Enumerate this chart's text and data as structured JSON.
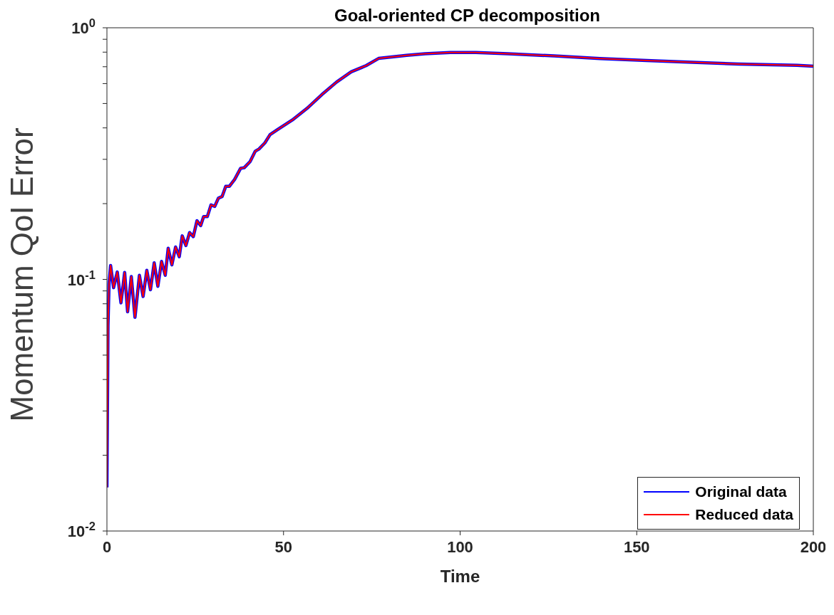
{
  "chart_data": {
    "type": "line",
    "title": "Goal-oriented CP decomposition",
    "xlabel": "Time",
    "ylabel": "Momentum QoI Error",
    "x": [
      0,
      0.3,
      0.6,
      1.04,
      1.88,
      2.93,
      3.97,
      5.02,
      5.85,
      6.9,
      7.94,
      9.2,
      10.24,
      11.29,
      12.33,
      13.38,
      14.42,
      15.47,
      16.51,
      17.35,
      18.39,
      19.44,
      20.48,
      21.32,
      22.36,
      23.41,
      24.45,
      25.5,
      26.54,
      27.38,
      28.42,
      29.47,
      30.51,
      31.56,
      32.6,
      33.65,
      34.69,
      36.15,
      37.83,
      38.87,
      40.54,
      42.01,
      43.05,
      44.72,
      46.19,
      48.28,
      52.46,
      56.64,
      60.82,
      65,
      69.17,
      73.35,
      76.91,
      84.85,
      90.07,
      97.18,
      104.5,
      113.5,
      126.6,
      139.6,
      152.8,
      165.7,
      178.9,
      195.4,
      200
    ],
    "series": [
      {
        "name": "Original data",
        "color": "#0000ff",
        "values": [
          0.0149,
          0.0655,
          0.0957,
          0.1135,
          0.0927,
          0.107,
          0.0807,
          0.1065,
          0.0743,
          0.1026,
          0.0707,
          0.1038,
          0.0855,
          0.1086,
          0.091,
          0.1164,
          0.0939,
          0.1179,
          0.1038,
          0.1329,
          0.1142,
          0.1345,
          0.1231,
          0.1489,
          0.1363,
          0.1535,
          0.1479,
          0.171,
          0.1636,
          0.1776,
          0.1776,
          0.1977,
          0.195,
          0.2104,
          0.2133,
          0.2344,
          0.2344,
          0.2496,
          0.2761,
          0.2778,
          0.294,
          0.3233,
          0.3297,
          0.3487,
          0.3762,
          0.3934,
          0.4296,
          0.478,
          0.542,
          0.608,
          0.6683,
          0.7068,
          0.7553,
          0.7765,
          0.7886,
          0.797,
          0.797,
          0.7886,
          0.773,
          0.755,
          0.7406,
          0.7295,
          0.7177,
          0.7092,
          0.703
        ]
      },
      {
        "name": "Reduced data",
        "color": "#ff0000",
        "values": [
          0.0149,
          0.0655,
          0.0957,
          0.1135,
          0.0927,
          0.107,
          0.0807,
          0.1065,
          0.0743,
          0.1026,
          0.0707,
          0.1038,
          0.0855,
          0.1086,
          0.091,
          0.1164,
          0.0939,
          0.1179,
          0.1038,
          0.1329,
          0.1142,
          0.1345,
          0.1231,
          0.1489,
          0.1363,
          0.1535,
          0.1479,
          0.171,
          0.1636,
          0.1776,
          0.1776,
          0.1977,
          0.195,
          0.2104,
          0.2133,
          0.2344,
          0.2344,
          0.2496,
          0.2761,
          0.2778,
          0.294,
          0.3233,
          0.3297,
          0.3487,
          0.3762,
          0.3934,
          0.4296,
          0.478,
          0.542,
          0.608,
          0.6683,
          0.7068,
          0.7553,
          0.7765,
          0.7886,
          0.797,
          0.797,
          0.7886,
          0.773,
          0.755,
          0.7406,
          0.7295,
          0.7177,
          0.7092,
          0.703
        ]
      }
    ],
    "xlim": [
      0,
      200
    ],
    "xticks": [
      0,
      50,
      100,
      150,
      200
    ],
    "ylim": [
      0.01,
      1
    ],
    "yticks": [
      {
        "value": 0.01,
        "label": "10$^{-2}$"
      },
      {
        "value": 0.02,
        "label": null
      },
      {
        "value": 0.03,
        "label": null
      },
      {
        "value": 0.04,
        "label": null
      },
      {
        "value": 0.05,
        "label": null
      },
      {
        "value": 0.06,
        "label": null
      },
      {
        "value": 0.07,
        "label": null
      },
      {
        "value": 0.08,
        "label": null
      },
      {
        "value": 0.09,
        "label": null
      },
      {
        "value": 0.1,
        "label": "10$^{-1}$"
      },
      {
        "value": 0.2,
        "label": null
      },
      {
        "value": 0.3,
        "label": null
      },
      {
        "value": 0.4,
        "label": null
      },
      {
        "value": 0.5,
        "label": null
      },
      {
        "value": 0.6,
        "label": null
      },
      {
        "value": 0.7,
        "label": null
      },
      {
        "value": 0.8,
        "label": null
      },
      {
        "value": 0.9,
        "label": null
      },
      {
        "value": 1,
        "label": "10$^{0}$"
      }
    ],
    "log": "y",
    "grid": false,
    "legend": "bottom right",
    "marker": "none",
    "line_style": "solid"
  }
}
